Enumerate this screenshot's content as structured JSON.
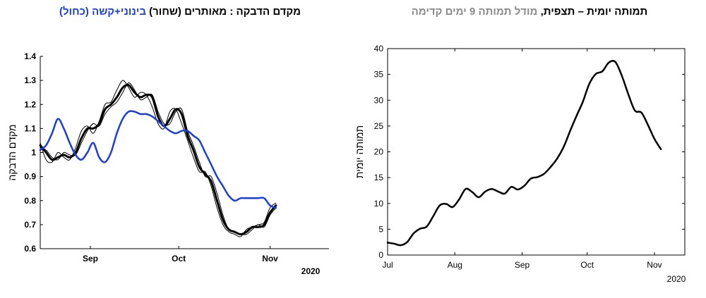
{
  "left_chart": {
    "title_part1": "מקדם הדבקה : מאותרים (שחור)",
    "title_part2": "בינוני+קשה (כחול)",
    "chart_data": {
      "type": "line",
      "ylabel": "מקדם הדבקה",
      "year_label": "2020",
      "x_range": [
        "2020-08-15",
        "2020-11-21"
      ],
      "ylim": [
        0.6,
        1.4
      ],
      "yticks": [
        0.6,
        0.7,
        0.8,
        0.9,
        1,
        1.1,
        1.2,
        1.3,
        1.4
      ],
      "ytick_labels": [
        "0.6",
        "0.7",
        "0.8",
        "0.9",
        "1",
        "1.1",
        "1.2",
        "1.3",
        "1.4"
      ],
      "xticks": [
        {
          "date": "2020-09-01",
          "label": "Sep"
        },
        {
          "date": "2020-10-01",
          "label": "Oct"
        },
        {
          "date": "2020-11-01",
          "label": "Nov"
        }
      ],
      "series": [
        {
          "color": "#000000",
          "width": 3,
          "x": [
            "2020-08-15",
            "2020-08-17",
            "2020-08-19",
            "2020-08-21",
            "2020-08-23",
            "2020-08-25",
            "2020-08-27",
            "2020-08-29",
            "2020-08-31",
            "2020-09-02",
            "2020-09-04",
            "2020-09-06",
            "2020-09-08",
            "2020-09-10",
            "2020-09-12",
            "2020-09-14",
            "2020-09-16",
            "2020-09-18",
            "2020-09-20",
            "2020-09-22",
            "2020-09-24",
            "2020-09-26",
            "2020-09-28",
            "2020-09-30",
            "2020-10-02",
            "2020-10-04",
            "2020-10-06",
            "2020-10-08",
            "2020-10-10",
            "2020-10-12",
            "2020-10-14",
            "2020-10-16",
            "2020-10-18",
            "2020-10-20",
            "2020-10-22",
            "2020-10-24",
            "2020-10-26",
            "2020-10-28",
            "2020-10-30",
            "2020-11-01",
            "2020-11-03"
          ],
          "y": [
            1.03,
            1.0,
            0.97,
            0.98,
            0.99,
            0.98,
            1.0,
            1.06,
            1.1,
            1.1,
            1.12,
            1.18,
            1.2,
            1.23,
            1.27,
            1.28,
            1.25,
            1.23,
            1.24,
            1.23,
            1.15,
            1.11,
            1.14,
            1.18,
            1.16,
            1.07,
            1.01,
            0.94,
            0.91,
            0.88,
            0.8,
            0.72,
            0.68,
            0.67,
            0.66,
            0.67,
            0.69,
            0.69,
            0.7,
            0.75,
            0.78
          ]
        },
        {
          "color": "#000000",
          "width": 1,
          "x": [
            "2020-08-15",
            "2020-08-17",
            "2020-08-19",
            "2020-08-21",
            "2020-08-23",
            "2020-08-25",
            "2020-08-27",
            "2020-08-29",
            "2020-08-31",
            "2020-09-02",
            "2020-09-04",
            "2020-09-06",
            "2020-09-08",
            "2020-09-10",
            "2020-09-12",
            "2020-09-14",
            "2020-09-16",
            "2020-09-18",
            "2020-09-20",
            "2020-09-22",
            "2020-09-24",
            "2020-09-26",
            "2020-09-28",
            "2020-09-30",
            "2020-10-02",
            "2020-10-04",
            "2020-10-06",
            "2020-10-08",
            "2020-10-10",
            "2020-10-12",
            "2020-10-14",
            "2020-10-16",
            "2020-10-18",
            "2020-10-20",
            "2020-10-22",
            "2020-10-24",
            "2020-10-26",
            "2020-10-28",
            "2020-10-30",
            "2020-11-01",
            "2020-11-03"
          ],
          "y": [
            1.04,
            0.97,
            0.96,
            1.0,
            0.98,
            0.97,
            1.02,
            1.09,
            1.11,
            1.08,
            1.13,
            1.2,
            1.21,
            1.26,
            1.3,
            1.27,
            1.23,
            1.25,
            1.24,
            1.19,
            1.12,
            1.1,
            1.17,
            1.18,
            1.12,
            1.05,
            0.98,
            0.92,
            0.92,
            0.86,
            0.77,
            0.7,
            0.67,
            0.66,
            0.65,
            0.68,
            0.69,
            0.7,
            0.71,
            0.77,
            0.79
          ]
        },
        {
          "color": "#000000",
          "width": 1,
          "x": [
            "2020-08-15",
            "2020-08-17",
            "2020-08-19",
            "2020-08-21",
            "2020-08-23",
            "2020-08-25",
            "2020-08-27",
            "2020-08-29",
            "2020-08-31",
            "2020-09-02",
            "2020-09-04",
            "2020-09-06",
            "2020-09-08",
            "2020-09-10",
            "2020-09-12",
            "2020-09-14",
            "2020-09-16",
            "2020-09-18",
            "2020-09-20",
            "2020-09-22",
            "2020-09-24",
            "2020-09-26",
            "2020-09-28",
            "2020-09-30",
            "2020-10-02",
            "2020-10-04",
            "2020-10-06",
            "2020-10-08",
            "2020-10-10",
            "2020-10-12",
            "2020-10-14",
            "2020-10-16",
            "2020-10-18",
            "2020-10-20",
            "2020-10-22",
            "2020-10-24",
            "2020-10-26",
            "2020-10-28",
            "2020-10-30",
            "2020-11-01",
            "2020-11-03"
          ],
          "y": [
            1.02,
            1.01,
            0.98,
            0.97,
            1.0,
            0.99,
            0.99,
            1.04,
            1.09,
            1.12,
            1.11,
            1.16,
            1.19,
            1.21,
            1.25,
            1.29,
            1.26,
            1.22,
            1.23,
            1.24,
            1.17,
            1.12,
            1.12,
            1.17,
            1.18,
            1.09,
            1.03,
            0.96,
            0.9,
            0.9,
            0.83,
            0.74,
            0.68,
            0.67,
            0.66,
            0.66,
            0.68,
            0.7,
            0.69,
            0.74,
            0.77
          ]
        },
        {
          "color": "#1a3fd6",
          "width": 2.5,
          "x": [
            "2020-08-15",
            "2020-08-17",
            "2020-08-19",
            "2020-08-21",
            "2020-08-23",
            "2020-08-25",
            "2020-08-27",
            "2020-08-29",
            "2020-08-31",
            "2020-09-02",
            "2020-09-04",
            "2020-09-06",
            "2020-09-08",
            "2020-09-10",
            "2020-09-12",
            "2020-09-14",
            "2020-09-16",
            "2020-09-18",
            "2020-09-20",
            "2020-09-22",
            "2020-09-24",
            "2020-09-26",
            "2020-09-28",
            "2020-09-30",
            "2020-10-02",
            "2020-10-04",
            "2020-10-06",
            "2020-10-08",
            "2020-10-10",
            "2020-10-12",
            "2020-10-14",
            "2020-10-16",
            "2020-10-18",
            "2020-10-20",
            "2020-10-22",
            "2020-10-24",
            "2020-10-26",
            "2020-10-28",
            "2020-10-30",
            "2020-11-01",
            "2020-11-03"
          ],
          "y": [
            1.01,
            1.03,
            1.08,
            1.14,
            1.1,
            1.04,
            0.99,
            0.97,
            1.0,
            1.04,
            0.98,
            0.96,
            1.0,
            1.08,
            1.14,
            1.17,
            1.17,
            1.16,
            1.16,
            1.15,
            1.13,
            1.11,
            1.09,
            1.08,
            1.09,
            1.09,
            1.07,
            1.05,
            1.0,
            0.95,
            0.9,
            0.86,
            0.82,
            0.8,
            0.81,
            0.81,
            0.81,
            0.81,
            0.81,
            0.78,
            0.77
          ]
        }
      ]
    }
  },
  "right_chart": {
    "title_part1": "תמותה יומית – תצפית,",
    "title_part2": "מודל תמותה 9 ימים קדימה",
    "chart_data": {
      "type": "line",
      "ylabel": "תמותה יומית",
      "year_label": "2020",
      "x_range": [
        "2020-07-01",
        "2020-11-15"
      ],
      "ylim": [
        0,
        40
      ],
      "yticks": [
        0,
        5,
        10,
        15,
        20,
        25,
        30,
        35,
        40
      ],
      "ytick_labels": [
        "0",
        "5",
        "10",
        "15",
        "20",
        "25",
        "30",
        "35",
        "40"
      ],
      "xticks": [
        {
          "date": "2020-07-01",
          "label": "Jul"
        },
        {
          "date": "2020-08-01",
          "label": "Aug"
        },
        {
          "date": "2020-09-01",
          "label": "Sep"
        },
        {
          "date": "2020-10-01",
          "label": "Oct"
        },
        {
          "date": "2020-11-01",
          "label": "Nov"
        }
      ],
      "series": [
        {
          "color": "#000000",
          "width": 2.5,
          "x": [
            "2020-07-01",
            "2020-07-04",
            "2020-07-07",
            "2020-07-10",
            "2020-07-13",
            "2020-07-16",
            "2020-07-19",
            "2020-07-22",
            "2020-07-25",
            "2020-07-28",
            "2020-07-31",
            "2020-08-03",
            "2020-08-06",
            "2020-08-09",
            "2020-08-12",
            "2020-08-15",
            "2020-08-18",
            "2020-08-21",
            "2020-08-24",
            "2020-08-27",
            "2020-08-30",
            "2020-09-02",
            "2020-09-05",
            "2020-09-08",
            "2020-09-11",
            "2020-09-14",
            "2020-09-17",
            "2020-09-20",
            "2020-09-23",
            "2020-09-26",
            "2020-09-29",
            "2020-10-02",
            "2020-10-05",
            "2020-10-08",
            "2020-10-11",
            "2020-10-14",
            "2020-10-17",
            "2020-10-20",
            "2020-10-23",
            "2020-10-26",
            "2020-10-29",
            "2020-11-01",
            "2020-11-04"
          ],
          "y": [
            2.4,
            2.2,
            1.9,
            2.5,
            4.2,
            5.1,
            5.5,
            7.5,
            9.6,
            9.9,
            9.3,
            10.8,
            12.8,
            12.2,
            11.2,
            12.3,
            12.8,
            12.3,
            11.9,
            13.2,
            12.7,
            13.4,
            14.8,
            15.1,
            15.7,
            17.0,
            18.6,
            20.8,
            23.9,
            26.9,
            29.7,
            33.2,
            35.1,
            35.6,
            37.3,
            37.4,
            34.7,
            31.1,
            28.0,
            27.6,
            25.2,
            22.5,
            20.5
          ]
        }
      ]
    }
  }
}
